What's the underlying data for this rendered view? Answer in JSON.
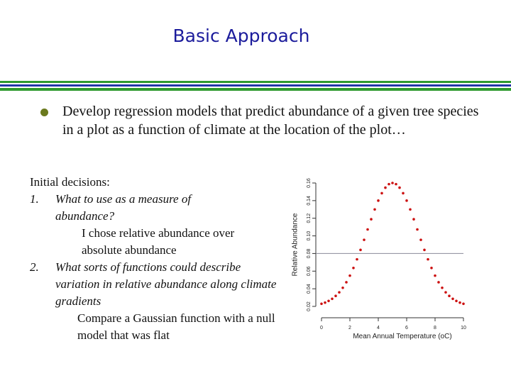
{
  "title": "Basic Approach",
  "bullet": "Develop regression models that predict abundance of a given tree species in a plot as a function of climate at the location of the plot…",
  "decisions": {
    "heading": "Initial decisions:",
    "items": [
      {
        "number": "1.",
        "text": "What to use as a measure of abundance?",
        "detail": "I chose relative abundance over absolute abundance"
      },
      {
        "number": "2.",
        "text": "What sorts of functions could describe variation in relative abundance along climate gradients",
        "detail": "Compare a Gaussian function with a null model that was flat"
      }
    ]
  },
  "chart_data": {
    "type": "scatter",
    "xlabel": "Mean Annual Temperature (oC)",
    "ylabel": "Relative Abundance",
    "x": [
      0,
      0.25,
      0.5,
      0.75,
      1,
      1.25,
      1.5,
      1.75,
      2,
      2.25,
      2.5,
      2.75,
      3,
      3.25,
      3.5,
      3.75,
      4,
      4.25,
      4.5,
      4.75,
      5,
      5.25,
      5.5,
      5.75,
      6,
      6.25,
      6.5,
      6.75,
      7,
      7.25,
      7.5,
      7.75,
      8,
      8.25,
      8.5,
      8.75,
      9,
      9.25,
      9.5,
      9.75,
      10
    ],
    "series": [
      {
        "color": "#cc1111",
        "values": [
          0.023,
          0.0243,
          0.0262,
          0.0286,
          0.0319,
          0.036,
          0.0411,
          0.0474,
          0.0549,
          0.0636,
          0.0734,
          0.0841,
          0.0955,
          0.1073,
          0.1189,
          0.13,
          0.14,
          0.1484,
          0.1547,
          0.1587,
          0.16,
          0.1587,
          0.1547,
          0.1484,
          0.14,
          0.13,
          0.1189,
          0.1073,
          0.0955,
          0.0841,
          0.0734,
          0.0636,
          0.0549,
          0.0474,
          0.0411,
          0.036,
          0.0319,
          0.0286,
          0.0262,
          0.0243,
          0.023
        ]
      }
    ],
    "reference_line": {
      "value": 0.08,
      "color": "#8a8a9a"
    },
    "xlim": [
      0,
      10
    ],
    "ylim": [
      0.02,
      0.16
    ],
    "xticks": [
      0,
      2,
      4,
      6,
      8,
      10
    ],
    "yticks": [
      0.02,
      0.04,
      0.06,
      0.08,
      {
        "value": 0.1,
        "label": "0.10"
      },
      0.12,
      0.14,
      0.16
    ]
  }
}
